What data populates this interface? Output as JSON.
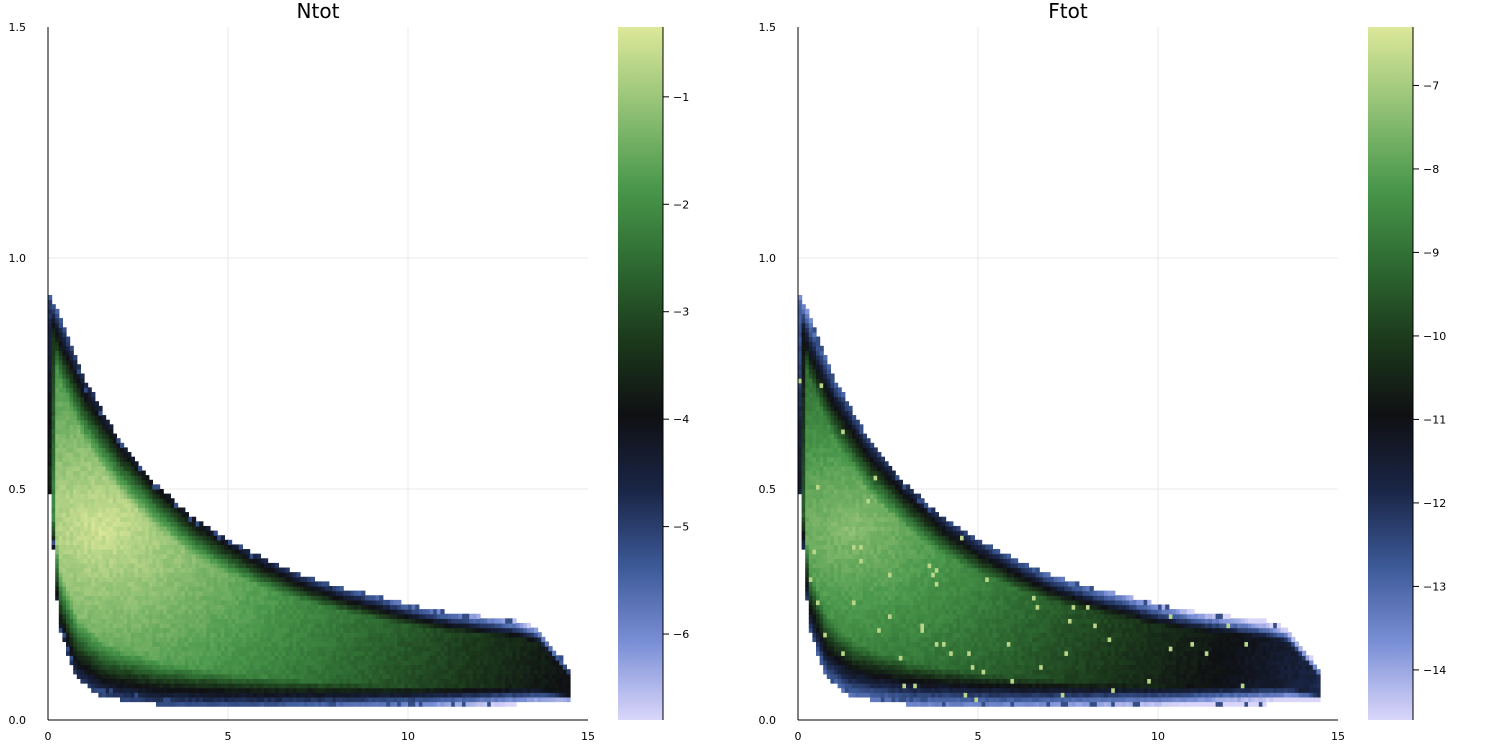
{
  "chart_data": [
    {
      "type": "heatmap",
      "title": "Ntot",
      "xlabel": "",
      "ylabel": "",
      "xlim": [
        0,
        15
      ],
      "ylim": [
        0,
        1.5
      ],
      "x_ticks": [
        "0",
        "5",
        "10",
        "15"
      ],
      "y_ticks": [
        "0.0",
        "0.5",
        "1.0",
        "1.5"
      ],
      "grid": true,
      "colorbar": {
        "range": [
          -6.8,
          -0.35
        ],
        "ticks": [
          "−1",
          "−2",
          "−3",
          "−4",
          "−5",
          "−6"
        ],
        "tick_values": [
          -1,
          -2,
          -3,
          -4,
          -5,
          -6
        ]
      },
      "colormap": [
        "#d9d6fa",
        "#7b90d6",
        "#3d5a98",
        "#1a2647",
        "#0f1013",
        "#1c3a1c",
        "#2e6b32",
        "#4a984c",
        "#8fc074",
        "#dde89a"
      ],
      "boundary": {
        "x_upper": [
          0,
          0.5,
          1,
          2,
          3,
          4,
          5,
          6,
          7,
          8,
          9,
          10,
          11,
          12,
          13,
          13.6,
          14.5
        ],
        "y_upper": [
          0.93,
          0.84,
          0.74,
          0.6,
          0.51,
          0.44,
          0.39,
          0.35,
          0.315,
          0.29,
          0.27,
          0.25,
          0.235,
          0.225,
          0.215,
          0.2,
          0.11
        ],
        "x_lower": [
          0,
          0.3,
          0.8,
          1.5,
          3,
          6,
          10,
          13,
          14
        ],
        "y_lower": [
          0.55,
          0.2,
          0.09,
          0.05,
          0.035,
          0.03,
          0.03,
          0.035,
          0.04
        ]
      },
      "peak": {
        "x": 1.5,
        "y": 0.42,
        "value": -0.45
      },
      "speckle": false
    },
    {
      "type": "heatmap",
      "title": "Ftot",
      "xlabel": "",
      "ylabel": "",
      "xlim": [
        0,
        15
      ],
      "ylim": [
        0,
        1.5
      ],
      "x_ticks": [
        "0",
        "5",
        "10",
        "15"
      ],
      "y_ticks": [
        "0.0",
        "0.5",
        "1.0",
        "1.5"
      ],
      "grid": true,
      "colorbar": {
        "range": [
          -14.6,
          -6.3
        ],
        "ticks": [
          "−7",
          "−8",
          "−9",
          "−10",
          "−11",
          "−12",
          "−13",
          "−14"
        ],
        "tick_values": [
          -7,
          -8,
          -9,
          -10,
          -11,
          -12,
          -13,
          -14
        ]
      },
      "colormap": [
        "#d9d6fa",
        "#7b90d6",
        "#3d5a98",
        "#1a2647",
        "#0f1013",
        "#1c3a1c",
        "#2e6b32",
        "#4a984c",
        "#8fc074",
        "#dde89a"
      ],
      "boundary": {
        "x_upper": [
          0,
          0.5,
          1,
          2,
          3,
          4,
          5,
          6,
          7,
          8,
          9,
          10,
          11,
          12,
          13,
          13.6,
          14.5
        ],
        "y_upper": [
          0.93,
          0.84,
          0.74,
          0.6,
          0.51,
          0.44,
          0.39,
          0.35,
          0.315,
          0.29,
          0.27,
          0.25,
          0.235,
          0.225,
          0.215,
          0.2,
          0.11
        ],
        "x_lower": [
          0,
          0.3,
          0.8,
          1.5,
          3,
          6,
          10,
          13,
          14
        ],
        "y_lower": [
          0.55,
          0.2,
          0.09,
          0.05,
          0.035,
          0.03,
          0.03,
          0.035,
          0.04
        ]
      },
      "peak": {
        "x": 1.5,
        "y": 0.42,
        "value": -7.3
      },
      "speckle": true
    }
  ]
}
